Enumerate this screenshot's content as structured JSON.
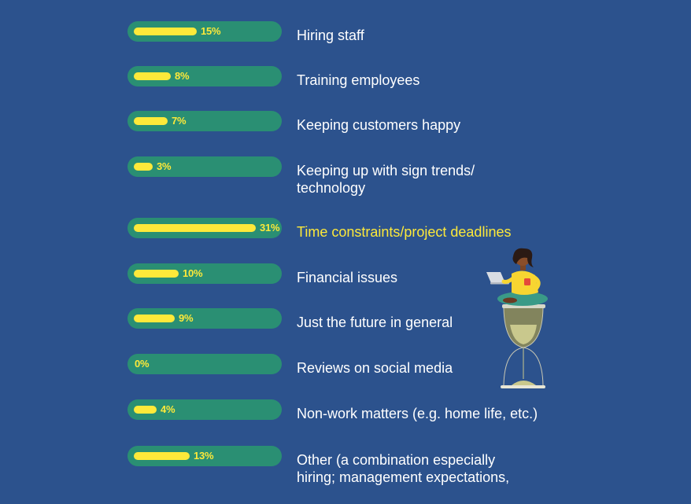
{
  "chart_data": {
    "type": "bar",
    "orientation": "horizontal",
    "unit": "%",
    "xlim": [
      0,
      31
    ],
    "categories": [
      "Hiring staff",
      "Training employees",
      "Keeping customers happy",
      "Keeping up with sign trends/\ntechnology",
      "Time constraints/project deadlines",
      "Financial issues",
      "Just the future in general",
      "Reviews on social media",
      "Non-work matters (e.g. home life, etc.)",
      "Other (a combination especially\nhiring; management expectations,"
    ],
    "values": [
      15,
      8,
      7,
      3,
      31,
      10,
      9,
      0,
      4,
      13
    ],
    "value_labels": [
      "15%",
      "8%",
      "7%",
      "3%",
      "31%",
      "10%",
      "9%",
      "0%",
      "4%",
      "13%"
    ],
    "highlighted_index": 4
  },
  "colors": {
    "background": "#2c528d",
    "track": "#2a8f73",
    "fill": "#fde93a",
    "label_text": "#ffffff",
    "highlight_text": "#fde93a"
  },
  "illustration": {
    "icon": "person-on-hourglass-icon"
  }
}
